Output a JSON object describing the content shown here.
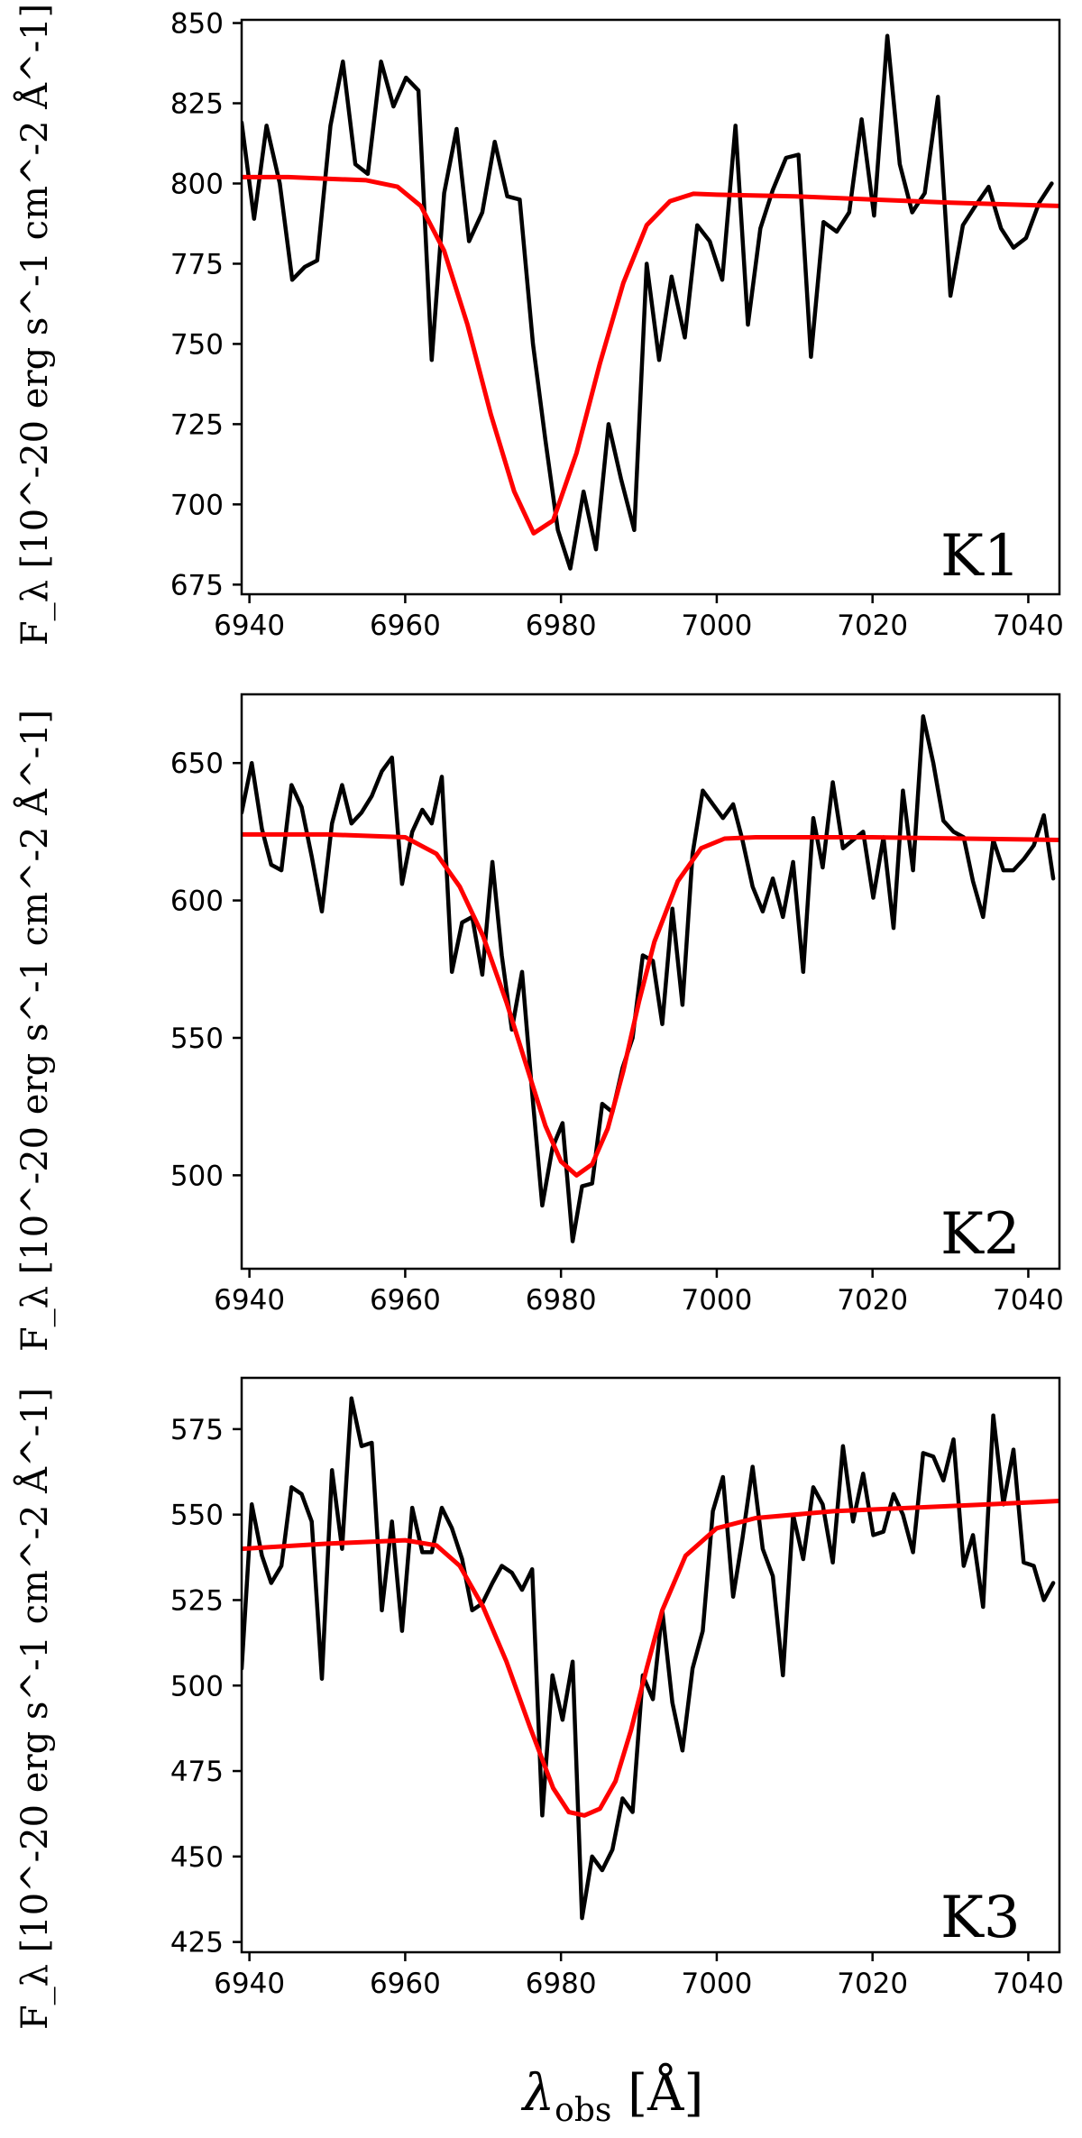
{
  "figure": {
    "xlabel_symbol": "λ",
    "xlabel_sub": "obs",
    "xlabel_unit": " [Å]"
  },
  "chart_data": [
    {
      "type": "line",
      "panel_label": "K1",
      "ylabel": "F_λ [10^-20 erg s^-1 cm^-2 Å^-1]",
      "xlim": [
        6939,
        7044
      ],
      "ylim": [
        672,
        851
      ],
      "xticks": [
        6940,
        6960,
        6980,
        7000,
        7020,
        7040
      ],
      "yticks": [
        675,
        700,
        725,
        750,
        775,
        800,
        825,
        850
      ],
      "series": [
        {
          "role": "observed-spectrum",
          "color": "#000000",
          "x": [
            6939,
            6940.6,
            6942.2,
            6943.9,
            6945.5,
            6947.1,
            6948.7,
            6950.4,
            6952,
            6953.6,
            6955.2,
            6956.9,
            6958.5,
            6960.1,
            6961.7,
            6963.4,
            6965,
            6966.6,
            6968.2,
            6969.9,
            6971.5,
            6973.1,
            6974.7,
            6976.4,
            6978,
            6979.6,
            6981.2,
            6982.9,
            6984.5,
            6986.1,
            6987.7,
            6989.4,
            6991,
            6992.6,
            6994.2,
            6995.9,
            6997.5,
            6999.1,
            7000.7,
            7002.4,
            7004,
            7005.6,
            7007.2,
            7008.9,
            7010.5,
            7012.1,
            7013.7,
            7015.4,
            7017,
            7018.6,
            7020.2,
            7021.9,
            7023.5,
            7025.1,
            7026.7,
            7028.4,
            7030,
            7031.6,
            7033.2,
            7034.9,
            7036.5,
            7038.1,
            7039.7,
            7041.4,
            7043
          ],
          "y": [
            819,
            789,
            818,
            800,
            770,
            774,
            776,
            818,
            838,
            806,
            803,
            838,
            824,
            833,
            829,
            745,
            797,
            817,
            782,
            791,
            813,
            796,
            795,
            750,
            720,
            692,
            680,
            704,
            686,
            725,
            708,
            692,
            775,
            745,
            771,
            752,
            787,
            782,
            770,
            818,
            756,
            786,
            798,
            808,
            809,
            746,
            788,
            785,
            791,
            820,
            790,
            846,
            806,
            791,
            797,
            827,
            765,
            787,
            793,
            799,
            786,
            780,
            783,
            794,
            800
          ]
        },
        {
          "role": "gaussian-fit",
          "color": "#ff0000",
          "x": [
            6939,
            6945,
            6950,
            6955,
            6959,
            6962,
            6965,
            6968,
            6971,
            6974,
            6976.5,
            6979,
            6982,
            6985,
            6988,
            6991,
            6994,
            6997,
            7000,
            7010,
            7020,
            7030,
            7044
          ],
          "y": [
            802,
            802,
            801.5,
            801,
            799,
            793,
            779,
            756,
            728,
            704,
            691,
            695,
            716,
            744,
            769,
            787,
            794.5,
            796.8,
            796.5,
            796,
            795,
            794,
            793
          ]
        }
      ]
    },
    {
      "type": "line",
      "panel_label": "K2",
      "ylabel": "F_λ [10^-20 erg s^-1 cm^-2 Å^-1]",
      "xlim": [
        6939,
        7044
      ],
      "ylim": [
        466,
        675
      ],
      "xticks": [
        6940,
        6960,
        6980,
        7000,
        7020,
        7040
      ],
      "yticks": [
        500,
        550,
        600,
        650
      ],
      "series": [
        {
          "role": "observed-spectrum",
          "color": "#000000",
          "x": [
            6939,
            6940.3,
            6941.6,
            6942.8,
            6944.1,
            6945.4,
            6946.7,
            6948,
            6949.3,
            6950.6,
            6951.9,
            6953.1,
            6954.4,
            6955.7,
            6957,
            6958.3,
            6959.6,
            6960.9,
            6962.2,
            6963.4,
            6964.7,
            6966,
            6967.3,
            6968.6,
            6969.9,
            6971.2,
            6972.4,
            6973.7,
            6975,
            6976.3,
            6977.6,
            6978.9,
            6980.2,
            6981.5,
            6982.7,
            6984,
            6985.3,
            6986.6,
            6987.9,
            6989.2,
            6990.5,
            6991.8,
            6993,
            6994.3,
            6995.6,
            6996.9,
            6998.2,
            6999.5,
            7000.8,
            7002.1,
            7003.3,
            7004.6,
            7005.9,
            7007.2,
            7008.5,
            7009.8,
            7011.1,
            7012.4,
            7013.6,
            7014.9,
            7016.2,
            7017.5,
            7018.8,
            7020.1,
            7021.4,
            7022.7,
            7023.9,
            7025.2,
            7026.5,
            7027.8,
            7029.1,
            7030.4,
            7031.7,
            7032.9,
            7034.2,
            7035.5,
            7036.8,
            7038.1,
            7039.4,
            7040.7,
            7042,
            7043.2
          ],
          "y": [
            632,
            650,
            626,
            613,
            611,
            642,
            634,
            616,
            596,
            628,
            642,
            628,
            632,
            638,
            647,
            652,
            606,
            625,
            633,
            628,
            645,
            574,
            592,
            594,
            573,
            614,
            580,
            553,
            574,
            530,
            489,
            510,
            519,
            476,
            496,
            497,
            526,
            523,
            539,
            550,
            580,
            578,
            555,
            597,
            562,
            617,
            640,
            635,
            630,
            635,
            622,
            605,
            596,
            608,
            594,
            614,
            574,
            630,
            612,
            643,
            619,
            622,
            625,
            601,
            623,
            590,
            640,
            611,
            667,
            650,
            629,
            625,
            623,
            607,
            594,
            622,
            611,
            611,
            615,
            620,
            631,
            608
          ]
        },
        {
          "role": "gaussian-fit",
          "color": "#ff0000",
          "x": [
            6939,
            6950,
            6960,
            6964,
            6967,
            6970,
            6973,
            6976,
            6978,
            6980,
            6982,
            6984,
            6986,
            6988,
            6990,
            6992,
            6995,
            6998,
            7001,
            7005,
            7020,
            7044
          ],
          "y": [
            624,
            624,
            623,
            617,
            605,
            587,
            563,
            536,
            518,
            505,
            500,
            504,
            517,
            538,
            563,
            585,
            607,
            619,
            622.5,
            623,
            623,
            622
          ]
        }
      ]
    },
    {
      "type": "line",
      "panel_label": "K3",
      "ylabel": "F_λ [10^-20 erg s^-1 cm^-2 Å^-1]",
      "xlim": [
        6939,
        7044
      ],
      "ylim": [
        422,
        590
      ],
      "xticks": [
        6940,
        6960,
        6980,
        7000,
        7020,
        7040
      ],
      "yticks": [
        425,
        450,
        475,
        500,
        525,
        550,
        575
      ],
      "series": [
        {
          "role": "observed-spectrum",
          "color": "#000000",
          "x": [
            6939,
            6940.3,
            6941.6,
            6942.8,
            6944.1,
            6945.4,
            6946.7,
            6948,
            6949.3,
            6950.6,
            6951.9,
            6953.1,
            6954.4,
            6955.7,
            6957,
            6958.3,
            6959.6,
            6960.9,
            6962.2,
            6963.4,
            6964.7,
            6966,
            6967.3,
            6968.6,
            6969.9,
            6971.2,
            6972.4,
            6973.7,
            6975,
            6976.3,
            6977.6,
            6978.9,
            6980.2,
            6981.5,
            6982.7,
            6984,
            6985.3,
            6986.6,
            6987.9,
            6989.2,
            6990.5,
            6991.8,
            6993,
            6994.3,
            6995.6,
            6996.9,
            6998.2,
            6999.5,
            7000.8,
            7002.1,
            7003.3,
            7004.6,
            7005.9,
            7007.2,
            7008.5,
            7009.8,
            7011.1,
            7012.4,
            7013.6,
            7014.9,
            7016.2,
            7017.5,
            7018.8,
            7020.1,
            7021.4,
            7022.7,
            7023.9,
            7025.2,
            7026.5,
            7027.8,
            7029.1,
            7030.4,
            7031.7,
            7032.9,
            7034.2,
            7035.5,
            7036.8,
            7038.1,
            7039.4,
            7040.7,
            7042,
            7043.2
          ],
          "y": [
            505,
            553,
            538,
            530,
            535,
            558,
            556,
            548,
            502,
            563,
            540,
            584,
            570,
            571,
            522,
            548,
            516,
            552,
            539,
            539,
            552,
            546,
            537,
            522,
            524,
            530,
            535,
            533,
            528,
            534,
            462,
            503,
            490,
            507,
            432,
            450,
            446,
            452,
            467,
            463,
            503,
            496,
            522,
            495,
            481,
            505,
            516,
            551,
            561,
            526,
            543,
            564,
            540,
            532,
            503,
            550,
            537,
            558,
            553,
            536,
            570,
            548,
            562,
            544,
            545,
            556,
            550,
            539,
            568,
            567,
            560,
            572,
            535,
            544,
            523,
            579,
            553,
            569,
            536,
            535,
            525,
            530
          ]
        },
        {
          "role": "gaussian-fit",
          "color": "#ff0000",
          "x": [
            6939,
            6950,
            6960,
            6964,
            6967,
            6970,
            6973,
            6976,
            6979,
            6981,
            6983,
            6985,
            6987,
            6989,
            6991,
            6993,
            6996,
            7000,
            7005,
            7015,
            7025,
            7035,
            7044
          ],
          "y": [
            540,
            541.5,
            542.5,
            541,
            535,
            523,
            507,
            488,
            470,
            463,
            462,
            464,
            472,
            487,
            505,
            522,
            538,
            546,
            549,
            551,
            552,
            553,
            554
          ]
        }
      ]
    }
  ]
}
